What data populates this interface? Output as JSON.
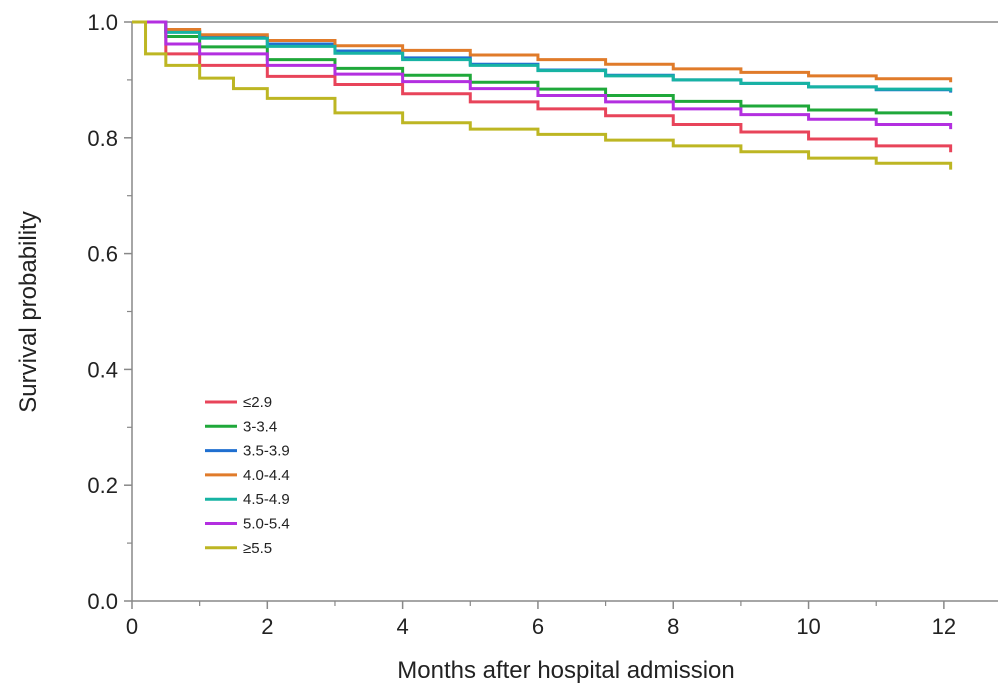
{
  "chart_data": {
    "type": "line",
    "xlabel": "Months after hospital admission",
    "ylabel": "Survival probability",
    "xlim": [
      0,
      12.8
    ],
    "ylim": [
      0,
      1.0
    ],
    "xticks": [
      "0",
      "2",
      "4",
      "6",
      "8",
      "10",
      "12"
    ],
    "yticks": [
      "0.0",
      "0.2",
      "0.4",
      "0.6",
      "0.8",
      "1.0"
    ],
    "grid": false,
    "legend_position": "lower-left",
    "series": [
      {
        "name": "≤2.9",
        "color": "#e8445a",
        "x": [
          0,
          0.5,
          1,
          2,
          3,
          4,
          5,
          6,
          7,
          8,
          9,
          10,
          11,
          12.1
        ],
        "y": [
          1.0,
          0.945,
          0.925,
          0.906,
          0.892,
          0.876,
          0.862,
          0.85,
          0.838,
          0.823,
          0.81,
          0.798,
          0.786,
          0.775
        ]
      },
      {
        "name": "3-3.4",
        "color": "#1fa83a",
        "x": [
          0,
          0.5,
          1,
          2,
          3,
          4,
          5,
          6,
          7,
          8,
          9,
          10,
          11,
          12.1
        ],
        "y": [
          1.0,
          0.975,
          0.957,
          0.935,
          0.92,
          0.908,
          0.896,
          0.884,
          0.873,
          0.863,
          0.855,
          0.848,
          0.843,
          0.838
        ]
      },
      {
        "name": "3.5-3.9",
        "color": "#1f6fd0",
        "x": [
          0,
          0.5,
          1,
          2,
          3,
          4,
          5,
          6,
          7,
          8,
          9,
          10,
          11,
          12.1
        ],
        "y": [
          1.0,
          0.984,
          0.974,
          0.962,
          0.95,
          0.938,
          0.927,
          0.917,
          0.908,
          0.9,
          0.894,
          0.888,
          0.883,
          0.878
        ]
      },
      {
        "name": "4.0-4.4",
        "color": "#e07b2a",
        "x": [
          0,
          0.5,
          1,
          2,
          3,
          4,
          5,
          6,
          7,
          8,
          9,
          10,
          11,
          12.1
        ],
        "y": [
          1.0,
          0.987,
          0.978,
          0.968,
          0.959,
          0.951,
          0.943,
          0.935,
          0.927,
          0.919,
          0.913,
          0.907,
          0.902,
          0.896
        ]
      },
      {
        "name": "4.5-4.9",
        "color": "#17b3a3",
        "x": [
          0,
          0.5,
          1,
          2,
          3,
          4,
          5,
          6,
          7,
          8,
          9,
          10,
          11,
          12.1
        ],
        "y": [
          1.0,
          0.982,
          0.972,
          0.958,
          0.946,
          0.935,
          0.925,
          0.916,
          0.907,
          0.9,
          0.894,
          0.888,
          0.884,
          0.88
        ]
      },
      {
        "name": "5.0-5.4",
        "color": "#b32fe0",
        "x": [
          0,
          0.5,
          1,
          2,
          3,
          4,
          5,
          6,
          7,
          8,
          9,
          10,
          11,
          12.1
        ],
        "y": [
          1.0,
          0.962,
          0.945,
          0.925,
          0.91,
          0.897,
          0.885,
          0.873,
          0.862,
          0.85,
          0.84,
          0.832,
          0.823,
          0.815
        ]
      },
      {
        "name": "≥5.5",
        "color": "#bdb623",
        "x": [
          0,
          0.2,
          0.5,
          1,
          1.5,
          2,
          3,
          4,
          5,
          6,
          7,
          8,
          9,
          10,
          11,
          12.1
        ],
        "y": [
          1.0,
          0.945,
          0.925,
          0.903,
          0.885,
          0.868,
          0.843,
          0.826,
          0.815,
          0.806,
          0.796,
          0.786,
          0.776,
          0.765,
          0.756,
          0.745
        ]
      }
    ]
  }
}
